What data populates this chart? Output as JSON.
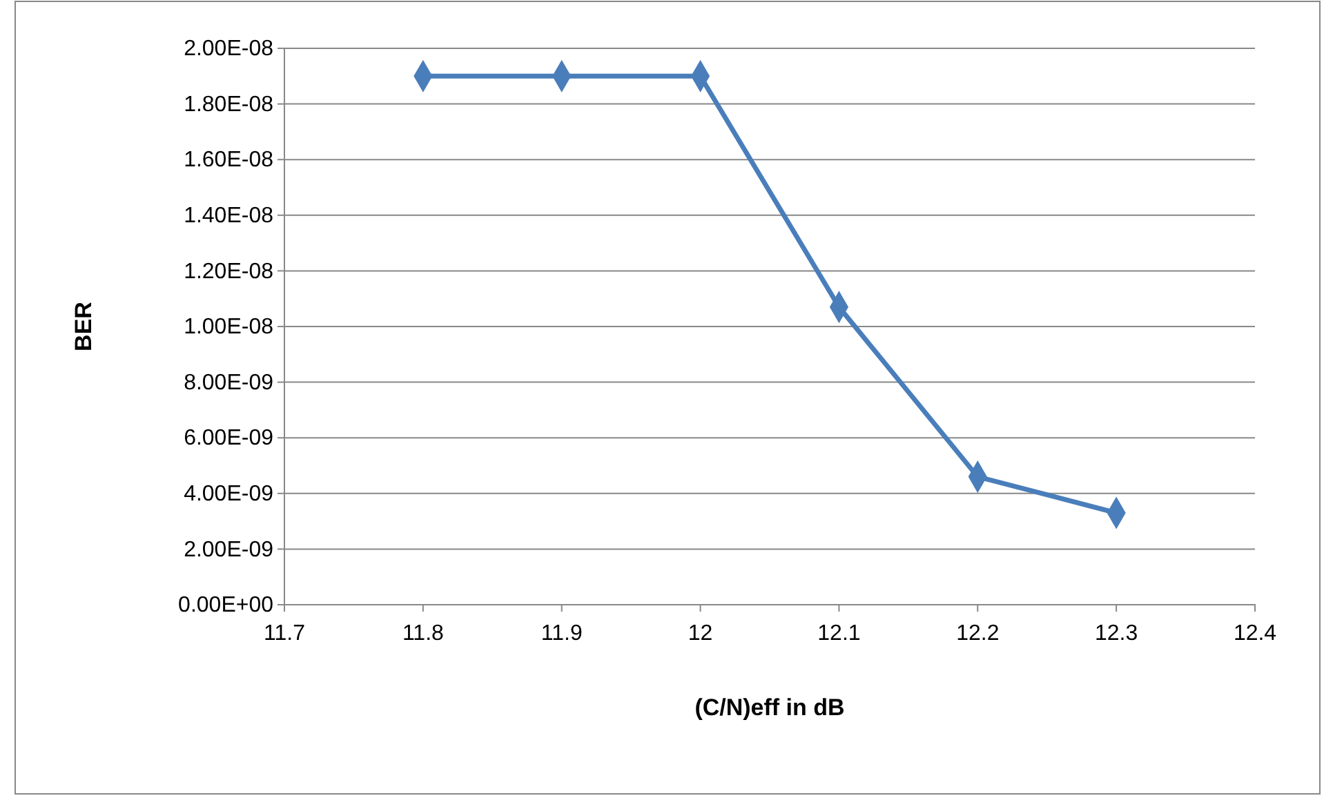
{
  "chart_data": {
    "type": "line",
    "xlabel": "(C/N)eff in dB",
    "ylabel": "BER",
    "x": [
      11.8,
      11.9,
      12.0,
      12.1,
      12.2,
      12.3
    ],
    "series": [
      {
        "color": "#4a7ebb",
        "values": [
          1.9e-08,
          1.9e-08,
          1.9e-08,
          1.07e-08,
          4.6e-09,
          3.3e-09
        ]
      }
    ],
    "xlim": [
      11.7,
      12.4
    ],
    "xticks": [
      11.7,
      11.8,
      11.9,
      12,
      12.1,
      12.2,
      12.3,
      12.4
    ],
    "ylim": [
      0,
      2e-08
    ],
    "yticks": [
      {
        "value": 0,
        "label": "0.00E+00"
      },
      {
        "value": 2e-09,
        "label": "2.00E-09"
      },
      {
        "value": 4e-09,
        "label": "4.00E-09"
      },
      {
        "value": 6e-09,
        "label": "6.00E-09"
      },
      {
        "value": 8e-09,
        "label": "8.00E-09"
      },
      {
        "value": 1e-08,
        "label": "1.00E-08"
      },
      {
        "value": 1.2e-08,
        "label": "1.20E-08"
      },
      {
        "value": 1.4e-08,
        "label": "1.40E-08"
      },
      {
        "value": 1.6e-08,
        "label": "1.60E-08"
      },
      {
        "value": 1.8e-08,
        "label": "1.80E-08"
      },
      {
        "value": 2e-08,
        "label": "2.00E-08"
      }
    ],
    "grid": "y",
    "marker": "diamond",
    "line_style": "solid"
  }
}
